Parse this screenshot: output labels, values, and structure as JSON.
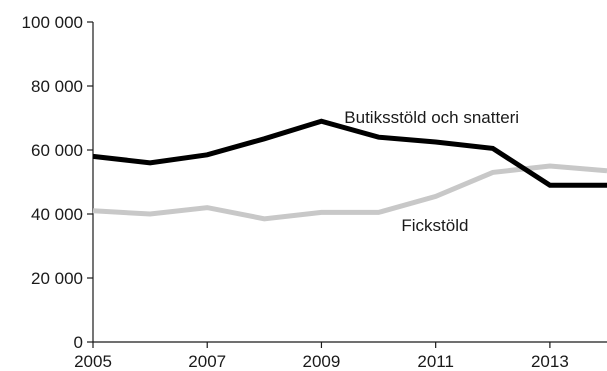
{
  "chart_data": {
    "type": "line",
    "title": "",
    "xlabel": "",
    "ylabel": "",
    "x": [
      2005,
      2006,
      2007,
      2008,
      2009,
      2010,
      2011,
      2012,
      2013,
      2014
    ],
    "x_tick_labels": [
      "2005",
      "2007",
      "2009",
      "2011",
      "2013"
    ],
    "x_tick_values": [
      2005,
      2007,
      2009,
      2011,
      2013
    ],
    "y_tick_labels": [
      "0",
      "20 000",
      "40 000",
      "60 000",
      "80 000",
      "100 000"
    ],
    "y_tick_values": [
      0,
      20000,
      40000,
      60000,
      80000,
      100000
    ],
    "xlim": [
      2005,
      2014
    ],
    "ylim": [
      0,
      100000
    ],
    "grid": false,
    "legend": "none (series labelled directly on chart)",
    "series": [
      {
        "name": "Butiksstöld och snatteri",
        "color": "#000000",
        "values": [
          58000,
          56000,
          58500,
          63500,
          69000,
          64000,
          62500,
          60500,
          49000,
          49000
        ]
      },
      {
        "name": "Fickstöld",
        "color": "#c8c8c8",
        "values": [
          41000,
          40000,
          42000,
          38500,
          40500,
          40500,
          45500,
          53000,
          55000,
          53500
        ]
      }
    ]
  }
}
